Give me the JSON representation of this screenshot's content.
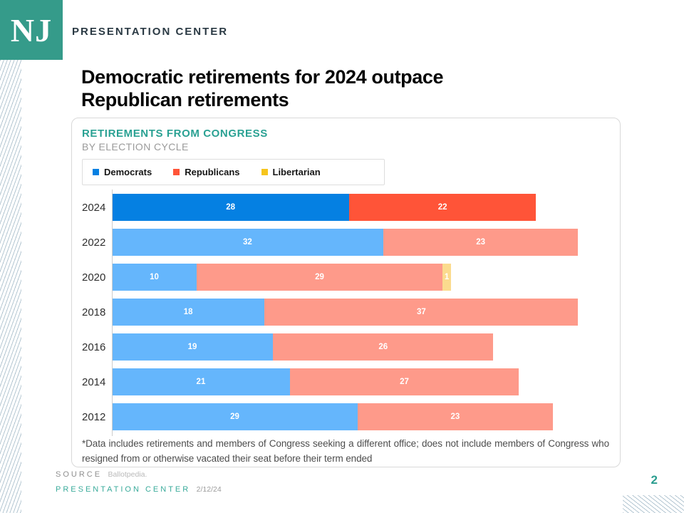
{
  "brand": {
    "logo": "NJ",
    "header": "PRESENTATION CENTER"
  },
  "title": "Democratic retirements for 2024 outpace Republican retirements",
  "chart": {
    "footnote": "*Data includes retirements and members of Congress seeking a different office; does not include members of Congress who resigned from or otherwise vacated their seat before their term ended"
  },
  "chart_data": {
    "type": "bar",
    "orientation": "horizontal",
    "stacked": true,
    "title": "RETIREMENTS FROM CONGRESS",
    "subtitle": "BY ELECTION CYCLE",
    "categories": [
      "2024",
      "2022",
      "2020",
      "2018",
      "2016",
      "2014",
      "2012"
    ],
    "series": [
      {
        "name": "Democrats",
        "values": [
          28,
          32,
          10,
          18,
          19,
          21,
          29
        ],
        "color": "#0580e2",
        "color_muted": "#65b6fc"
      },
      {
        "name": "Republicans",
        "values": [
          22,
          23,
          29,
          37,
          26,
          27,
          23
        ],
        "color": "#ff5438",
        "color_muted": "#fe9a8a"
      },
      {
        "name": "Libertarian",
        "values": [
          0,
          0,
          1,
          0,
          0,
          0,
          0
        ],
        "color": "#f6c51d",
        "color_muted": "#fbdb8e"
      }
    ],
    "highlight_category": "2024",
    "xlim": [
      0,
      60
    ],
    "legend_position": "top-left",
    "value_labels": "inside-white",
    "grid": false
  },
  "footer": {
    "source_label": "SOURCE",
    "source_value": "Ballotpedia.",
    "brand_label": "PRESENTATION CENTER",
    "date": "2/12/24",
    "page_number": "2"
  },
  "colors": {
    "brand_teal": "#359b8a",
    "heading_teal": "#2aa193",
    "footer_teal": "#3aab9b",
    "page_number_teal": "#2a9d8f"
  }
}
